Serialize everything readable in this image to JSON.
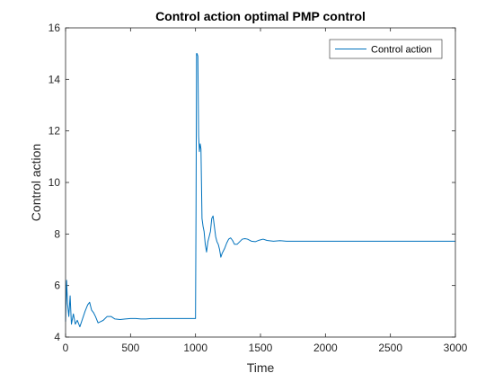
{
  "chart_data": {
    "type": "line",
    "title": "Control action optimal PMP control",
    "xlabel": "Time",
    "ylabel": "Control action",
    "xlim": [
      0,
      3000
    ],
    "ylim": [
      4,
      16
    ],
    "xticks": [
      0,
      500,
      1000,
      1500,
      2000,
      2500,
      3000
    ],
    "yticks": [
      4,
      6,
      8,
      10,
      12,
      14,
      16
    ],
    "grid": false,
    "legend": "top-right",
    "series": [
      {
        "name": "Control action",
        "color": "#0072BD",
        "x": [
          0,
          8,
          15,
          25,
          35,
          45,
          60,
          75,
          90,
          110,
          130,
          150,
          170,
          185,
          200,
          215,
          230,
          250,
          270,
          290,
          320,
          350,
          380,
          420,
          460,
          500,
          540,
          580,
          620,
          660,
          700,
          750,
          800,
          850,
          900,
          950,
          1000,
          1004,
          1008,
          1012,
          1018,
          1024,
          1030,
          1036,
          1042,
          1050,
          1058,
          1066,
          1075,
          1085,
          1095,
          1105,
          1115,
          1125,
          1135,
          1145,
          1155,
          1165,
          1175,
          1185,
          1195,
          1205,
          1215,
          1225,
          1240,
          1255,
          1270,
          1285,
          1300,
          1320,
          1340,
          1360,
          1380,
          1400,
          1430,
          1460,
          1490,
          1520,
          1550,
          1600,
          1650,
          1700,
          1750,
          1800,
          1900,
          2000,
          2200,
          2400,
          2600,
          2800,
          3000
        ],
        "y": [
          4.6,
          6.2,
          5.3,
          4.8,
          5.6,
          4.5,
          4.9,
          4.5,
          4.65,
          4.4,
          4.7,
          5.0,
          5.25,
          5.35,
          5.05,
          4.95,
          4.8,
          4.55,
          4.6,
          4.65,
          4.8,
          4.8,
          4.7,
          4.68,
          4.7,
          4.72,
          4.72,
          4.7,
          4.7,
          4.72,
          4.72,
          4.72,
          4.72,
          4.72,
          4.72,
          4.72,
          4.72,
          9.0,
          15.0,
          15.0,
          14.9,
          11.8,
          11.2,
          11.5,
          11.3,
          8.6,
          8.3,
          8.1,
          7.6,
          7.3,
          7.7,
          7.9,
          8.1,
          8.6,
          8.7,
          8.3,
          7.9,
          7.7,
          7.6,
          7.4,
          7.1,
          7.25,
          7.35,
          7.45,
          7.65,
          7.8,
          7.85,
          7.75,
          7.6,
          7.6,
          7.7,
          7.8,
          7.82,
          7.8,
          7.72,
          7.7,
          7.76,
          7.8,
          7.75,
          7.72,
          7.74,
          7.72,
          7.72,
          7.72,
          7.72,
          7.72,
          7.72,
          7.72,
          7.72,
          7.72,
          7.72
        ]
      }
    ]
  }
}
